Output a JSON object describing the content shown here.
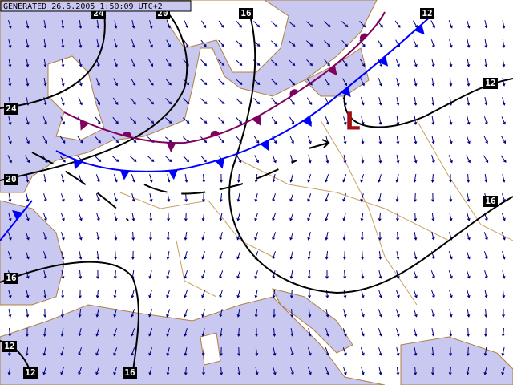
{
  "header": {
    "generated": "GENERATED 26.6.2005 1:50:09 UTC+2"
  },
  "isobar_labels": [
    "24",
    "20",
    "16",
    "12",
    "24",
    "20",
    "16",
    "12",
    "12",
    "16",
    "12",
    "16"
  ],
  "pressure_center": "L"
}
